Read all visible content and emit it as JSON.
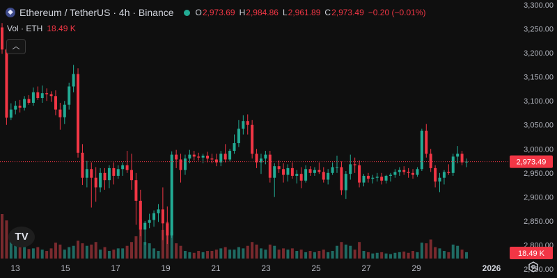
{
  "header": {
    "symbol_title": "Ethereum / TetherUS · 4h · Binance",
    "ohlc": {
      "o_label": "O",
      "o": "2,973.69",
      "h_label": "H",
      "h": "2,984.86",
      "l_label": "L",
      "l": "2,961.89",
      "c_label": "C",
      "c": "2,973.49",
      "change": "−0.20 (−0.01%)"
    },
    "volume": {
      "label": "Vol · ETH",
      "value": "18.49 K"
    }
  },
  "icons": {
    "symbol_logo": "ethereum-logo-icon",
    "market_status": "market-open-dot-icon",
    "collapse": "chevron-up-icon",
    "brand": "tradingview-logo-icon",
    "settings": "gear-icon"
  },
  "brand_text": "TV",
  "colors": {
    "up": "#22ab94",
    "down": "#f23645",
    "up_volume": "#1f6b63",
    "down_volume": "#7a2a2e",
    "background": "#0f0f0f",
    "last_price": "#f23645"
  },
  "chart_data": {
    "type": "candlestick",
    "price_axis": {
      "range": [
        2750,
        3300
      ],
      "ticks": [
        "3,300.00",
        "3,250.00",
        "3,200.00",
        "3,150.00",
        "3,100.00",
        "3,050.00",
        "3,000.00",
        "2,950.00",
        "2,900.00",
        "2,850.00",
        "2,800.00",
        "2,750.00"
      ],
      "tick_values": [
        3300,
        3250,
        3200,
        3150,
        3100,
        3050,
        3000,
        2950,
        2900,
        2850,
        2800,
        2750
      ]
    },
    "time_axis": {
      "labels": [
        "13",
        "15",
        "17",
        "19",
        "21",
        "23",
        "25",
        "27",
        "29",
        "2026"
      ]
    },
    "last_price": {
      "value": 2973.49,
      "label": "2,973.49"
    },
    "volume_label": "18.49 K",
    "grid": false,
    "candles": [
      [
        3253,
        3262,
        3198,
        3207,
        70
      ],
      [
        3207,
        3210,
        3050,
        3065,
        60
      ],
      [
        3065,
        3095,
        3060,
        3082,
        35
      ],
      [
        3082,
        3100,
        3072,
        3090,
        28
      ],
      [
        3090,
        3102,
        3076,
        3086,
        25
      ],
      [
        3086,
        3110,
        3080,
        3104,
        18
      ],
      [
        3104,
        3112,
        3092,
        3096,
        15
      ],
      [
        3096,
        3128,
        3090,
        3118,
        16
      ],
      [
        3118,
        3130,
        3102,
        3106,
        18
      ],
      [
        3106,
        3132,
        3096,
        3116,
        14
      ],
      [
        3116,
        3126,
        3100,
        3114,
        12
      ],
      [
        3114,
        3120,
        3098,
        3110,
        16
      ],
      [
        3110,
        3122,
        3070,
        3082,
        25
      ],
      [
        3082,
        3096,
        3040,
        3066,
        22
      ],
      [
        3066,
        3100,
        3052,
        3092,
        14
      ],
      [
        3092,
        3138,
        3082,
        3130,
        18
      ],
      [
        3130,
        3175,
        3118,
        3156,
        20
      ],
      [
        3156,
        3168,
        2982,
        2992,
        28
      ],
      [
        2992,
        3010,
        2925,
        2940,
        24
      ],
      [
        2940,
        2975,
        2920,
        2958,
        20
      ],
      [
        2958,
        2972,
        2878,
        2940,
        22
      ],
      [
        2940,
        2962,
        2890,
        2920,
        26
      ],
      [
        2920,
        2960,
        2910,
        2950,
        14
      ],
      [
        2950,
        2960,
        2915,
        2935,
        18
      ],
      [
        2935,
        2966,
        2918,
        2960,
        12
      ],
      [
        2960,
        2972,
        2926,
        2944,
        14
      ],
      [
        2944,
        2966,
        2938,
        2958,
        16
      ],
      [
        2958,
        2972,
        2944,
        2966,
        16
      ],
      [
        2966,
        2996,
        2950,
        2956,
        20
      ],
      [
        2956,
        2990,
        2915,
        2935,
        26
      ],
      [
        2935,
        2950,
        2842,
        2892,
        35
      ],
      [
        2892,
        2915,
        2818,
        2832,
        62
      ],
      [
        2832,
        2850,
        2800,
        2846,
        26
      ],
      [
        2846,
        2865,
        2835,
        2852,
        24
      ],
      [
        2852,
        2872,
        2838,
        2866,
        16
      ],
      [
        2866,
        2885,
        2848,
        2874,
        12
      ],
      [
        2874,
        2920,
        2810,
        2845,
        45
      ],
      [
        2845,
        2880,
        2802,
        2820,
        58
      ],
      [
        2820,
        2995,
        2815,
        2988,
        42
      ],
      [
        2988,
        2998,
        2960,
        2978,
        24
      ],
      [
        2978,
        2990,
        2930,
        2956,
        20
      ],
      [
        2956,
        2988,
        2946,
        2980,
        12
      ],
      [
        2980,
        2998,
        2970,
        2988,
        10
      ],
      [
        2988,
        2996,
        2976,
        2984,
        9
      ],
      [
        2984,
        2992,
        2976,
        2982,
        12
      ],
      [
        2982,
        2990,
        2970,
        2986,
        10
      ],
      [
        2986,
        2994,
        2972,
        2980,
        12
      ],
      [
        2980,
        2990,
        2970,
        2978,
        12
      ],
      [
        2978,
        2990,
        2964,
        2972,
        14
      ],
      [
        2972,
        2996,
        2964,
        2990,
        16
      ],
      [
        2990,
        3010,
        2972,
        2978,
        18
      ],
      [
        2978,
        3000,
        2974,
        2996,
        14
      ],
      [
        2996,
        3030,
        2990,
        3012,
        14
      ],
      [
        3012,
        3060,
        3004,
        3042,
        18
      ],
      [
        3042,
        3070,
        3030,
        3058,
        16
      ],
      [
        3058,
        3072,
        3030,
        3050,
        20
      ],
      [
        3050,
        3060,
        2980,
        2990,
        26
      ],
      [
        2990,
        3000,
        2960,
        2972,
        22
      ],
      [
        2972,
        2990,
        2948,
        2980,
        16
      ],
      [
        2980,
        2996,
        2968,
        2988,
        14
      ],
      [
        2988,
        2996,
        2930,
        2940,
        22
      ],
      [
        2940,
        2970,
        2900,
        2964,
        20
      ],
      [
        2964,
        2976,
        2950,
        2958,
        14
      ],
      [
        2958,
        2970,
        2930,
        2946,
        16
      ],
      [
        2946,
        2968,
        2932,
        2960,
        14
      ],
      [
        2960,
        2972,
        2938,
        2944,
        16
      ],
      [
        2944,
        2956,
        2928,
        2948,
        12
      ],
      [
        2948,
        2962,
        2918,
        2934,
        14
      ],
      [
        2934,
        2966,
        2930,
        2958,
        10
      ],
      [
        2958,
        2964,
        2944,
        2950,
        12
      ],
      [
        2950,
        2962,
        2944,
        2956,
        10
      ],
      [
        2956,
        2972,
        2948,
        2952,
        12
      ],
      [
        2952,
        2962,
        2930,
        2936,
        14
      ],
      [
        2936,
        2958,
        2926,
        2950,
        10
      ],
      [
        2950,
        2972,
        2946,
        2962,
        12
      ],
      [
        2962,
        2986,
        2950,
        2962,
        20
      ],
      [
        2962,
        2974,
        2904,
        2914,
        26
      ],
      [
        2914,
        2954,
        2896,
        2948,
        22
      ],
      [
        2948,
        2988,
        2936,
        2968,
        20
      ],
      [
        2968,
        2982,
        2950,
        2966,
        14
      ],
      [
        2966,
        2976,
        2920,
        2930,
        26
      ],
      [
        2930,
        2948,
        2922,
        2944,
        12
      ],
      [
        2944,
        2950,
        2930,
        2938,
        10
      ],
      [
        2938,
        2946,
        2928,
        2940,
        8
      ],
      [
        2940,
        2950,
        2932,
        2942,
        9
      ],
      [
        2942,
        2950,
        2926,
        2934,
        10
      ],
      [
        2934,
        2946,
        2928,
        2944,
        8
      ],
      [
        2944,
        2950,
        2932,
        2946,
        7
      ],
      [
        2946,
        2958,
        2940,
        2952,
        9
      ],
      [
        2952,
        2962,
        2944,
        2956,
        10
      ],
      [
        2956,
        2964,
        2946,
        2952,
        11
      ],
      [
        2952,
        2960,
        2940,
        2950,
        9
      ],
      [
        2950,
        2958,
        2938,
        2946,
        12
      ],
      [
        2946,
        2962,
        2942,
        2958,
        10
      ],
      [
        2958,
        3042,
        2954,
        3038,
        25
      ],
      [
        3038,
        3052,
        2982,
        2990,
        24
      ],
      [
        2990,
        3000,
        2952,
        2960,
        30
      ],
      [
        2960,
        2966,
        2920,
        2932,
        18
      ],
      [
        2932,
        2950,
        2910,
        2940,
        16
      ],
      [
        2940,
        2956,
        2926,
        2952,
        12
      ],
      [
        2952,
        2968,
        2946,
        2950,
        10
      ],
      [
        2950,
        2990,
        2944,
        2984,
        22
      ],
      [
        2984,
        3006,
        2970,
        2990,
        20
      ],
      [
        2990,
        2996,
        2966,
        2972,
        14
      ],
      [
        2972,
        2980,
        2962,
        2973.49,
        10
      ]
    ]
  }
}
